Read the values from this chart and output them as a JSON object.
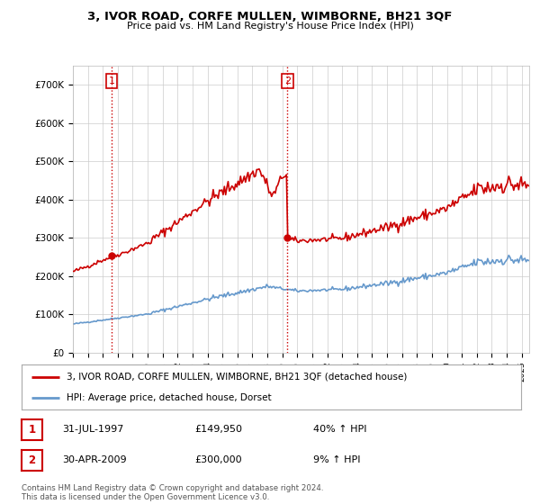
{
  "title": "3, IVOR ROAD, CORFE MULLEN, WIMBORNE, BH21 3QF",
  "subtitle": "Price paid vs. HM Land Registry's House Price Index (HPI)",
  "legend_line1": "3, IVOR ROAD, CORFE MULLEN, WIMBORNE, BH21 3QF (detached house)",
  "legend_line2": "HPI: Average price, detached house, Dorset",
  "sale1_date": "31-JUL-1997",
  "sale1_price": "£149,950",
  "sale1_hpi": "40% ↑ HPI",
  "sale2_date": "30-APR-2009",
  "sale2_price": "£300,000",
  "sale2_hpi": "9% ↑ HPI",
  "footer": "Contains HM Land Registry data © Crown copyright and database right 2024.\nThis data is licensed under the Open Government Licence v3.0.",
  "sale_color": "#cc0000",
  "hpi_color": "#6699cc",
  "background_color": "#ffffff",
  "grid_color": "#cccccc",
  "ylim": [
    0,
    750000
  ],
  "yticks": [
    0,
    100000,
    200000,
    300000,
    400000,
    500000,
    600000,
    700000
  ],
  "ytick_labels": [
    "£0",
    "£100K",
    "£200K",
    "£300K",
    "£400K",
    "£500K",
    "£600K",
    "£700K"
  ],
  "sale1_year": 1997.58,
  "sale2_year": 2009.33,
  "vline_color": "#cc0000",
  "vline_style": ":"
}
